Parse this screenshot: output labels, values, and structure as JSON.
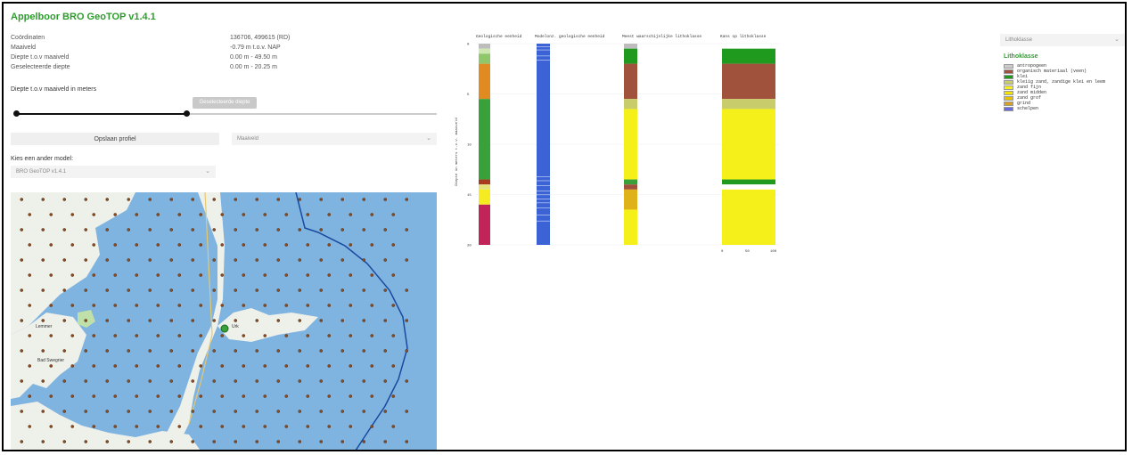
{
  "app": {
    "title": "Appelboor BRO GeoTOP v1.4.1"
  },
  "info": [
    {
      "label": "Coördinaten",
      "value": "136706, 499615 (RD)"
    },
    {
      "label": "Maaiveld",
      "value": "-0.79 m t.o.v. NAP"
    },
    {
      "label": "Diepte t.o.v maaiveld",
      "value": "0.00 m - 49.50 m"
    },
    {
      "label": "Geselecteerde diepte",
      "value": "0.00 m - 20.25 m"
    }
  ],
  "depth_slider": {
    "label": "Diepte t.o.v maaiveld in meters",
    "tooltip": "Geselecteerde diepte",
    "fraction_end": 0.41
  },
  "profile": {
    "button_label": "Opslaan profiel",
    "select_value": "Maaiveld"
  },
  "model": {
    "label": "Kies een ander model:",
    "select_value": "BRO GeoTOP v1.4.1"
  },
  "chart": {
    "column_titles": [
      "Geologische eenheid",
      "Modelonz. geologische eenheid",
      "Meest waarschijnlijke lithoklasse",
      "Kans op lithoklasse"
    ],
    "y_axis_label": "Diepte in meters t.o.v. maaiveld",
    "y_ticks": [
      "0",
      "5",
      "10",
      "15",
      "20"
    ],
    "x_ticks": [
      "0",
      "50",
      "100"
    ]
  },
  "chart_data": {
    "type": "bar",
    "ylabel": "Diepte in meters t.o.v. maaiveld",
    "ylim": [
      0,
      20
    ],
    "geologische_eenheid": [
      {
        "top": 0,
        "bottom": 0.5,
        "color": "#bdbdbd"
      },
      {
        "top": 0.5,
        "bottom": 1.0,
        "color": "#cfe7b0"
      },
      {
        "top": 1.0,
        "bottom": 2.0,
        "color": "#8ec86b"
      },
      {
        "top": 2.0,
        "bottom": 5.5,
        "color": "#e08a22"
      },
      {
        "top": 5.5,
        "bottom": 13.5,
        "color": "#3aa13a"
      },
      {
        "top": 13.5,
        "bottom": 14.0,
        "color": "#a83a1f"
      },
      {
        "top": 14.0,
        "bottom": 14.5,
        "color": "#e6e27a"
      },
      {
        "top": 14.5,
        "bottom": 16.0,
        "color": "#f4ec20"
      },
      {
        "top": 16.0,
        "bottom": 20.0,
        "color": "#c2245a"
      }
    ],
    "meest_waarschijnlijke_lithoklasse": [
      {
        "top": 0,
        "bottom": 0.5,
        "color": "#bdbdbd"
      },
      {
        "top": 0.5,
        "bottom": 2.0,
        "color": "#1f9a1f"
      },
      {
        "top": 2.0,
        "bottom": 5.5,
        "color": "#a0523c"
      },
      {
        "top": 5.5,
        "bottom": 6.5,
        "color": "#c8cc6a"
      },
      {
        "top": 6.5,
        "bottom": 13.5,
        "color": "#f6f01a"
      },
      {
        "top": 13.5,
        "bottom": 14.0,
        "color": "#3aa13a"
      },
      {
        "top": 14.0,
        "bottom": 14.5,
        "color": "#a0523c"
      },
      {
        "top": 14.5,
        "bottom": 16.5,
        "color": "#e0b21a"
      },
      {
        "top": 16.5,
        "bottom": 20.0,
        "color": "#f6f01a"
      }
    ],
    "kans_op_lithoklasse": [
      {
        "top": 0.5,
        "bottom": 2.0,
        "color": "#1f9a1f"
      },
      {
        "top": 2.0,
        "bottom": 5.5,
        "color": "#a0523c"
      },
      {
        "top": 5.5,
        "bottom": 6.5,
        "color": "#c8cc6a"
      },
      {
        "top": 6.5,
        "bottom": 13.5,
        "color": "#f6f01a"
      },
      {
        "top": 13.5,
        "bottom": 14.0,
        "color": "#1f9a1f"
      },
      {
        "top": 14.0,
        "bottom": 14.5,
        "color": "#ffffff"
      },
      {
        "top": 14.5,
        "bottom": 20.0,
        "color": "#f6f01a"
      }
    ]
  },
  "legend": {
    "select_value": "Lithoklasse",
    "title": "Lithoklasse",
    "items": [
      {
        "label": "antropogeen",
        "color": "#cccccc"
      },
      {
        "label": "organisch materiaal (veen)",
        "color": "#a0523c"
      },
      {
        "label": "klei",
        "color": "#1f9a1f"
      },
      {
        "label": "kleiig zand, zandige klei en leem",
        "color": "#c8cc6a"
      },
      {
        "label": "zand fijn",
        "color": "#f6f01a"
      },
      {
        "label": "zand midden",
        "color": "#f2e200"
      },
      {
        "label": "zand grof",
        "color": "#e6c200"
      },
      {
        "label": "grind",
        "color": "#d8a020"
      },
      {
        "label": "schelpen",
        "color": "#6a6ae0"
      }
    ]
  },
  "map": {
    "label_1": "Lemmer",
    "label_2": "Bad Swegrier",
    "label_3": "Urk"
  }
}
